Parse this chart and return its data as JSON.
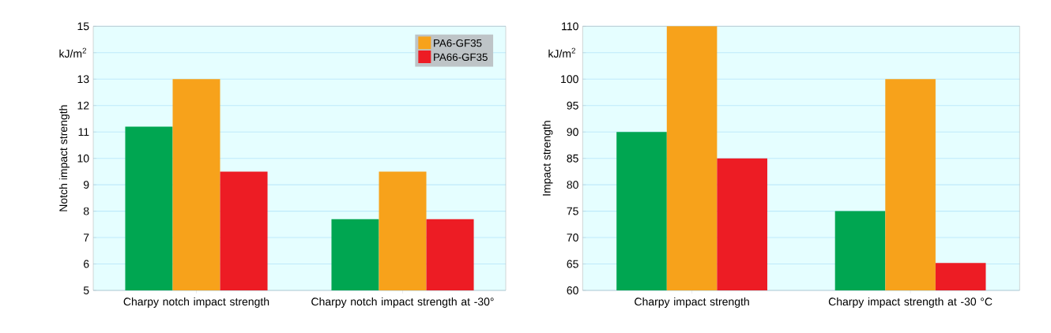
{
  "chart_data": [
    {
      "type": "bar",
      "ylabel": "Notch impact strength",
      "annotations": [
        "kJ/m$^{2}$"
      ],
      "categories": [
        "Charpy notch impact strength",
        "Charpy notch impact strength at -30°"
      ],
      "series": [
        {
          "color": "#00a651",
          "values": [
            11.2,
            7.7
          ]
        },
        {
          "name": "PA6-GF35",
          "color": "#f7a21b",
          "values": [
            13,
            9.5
          ]
        },
        {
          "name": "PA66-GF35",
          "color": "#ed1c24",
          "values": [
            9.5,
            7.7
          ]
        }
      ],
      "ylim": [
        5,
        15
      ],
      "yticks": [
        5,
        6,
        7,
        8,
        9,
        10,
        11,
        12,
        13,
        {
          "value": 14,
          "label": null
        },
        15
      ],
      "grid": "y",
      "legend": "top right"
    },
    {
      "type": "bar",
      "ylabel": "Impact strength",
      "annotations": [
        "kJ/m$^{2}$"
      ],
      "categories": [
        "Charpy impact strength",
        "Charpy impact strength at -30 °C"
      ],
      "series": [
        {
          "color": "#00a651",
          "values": [
            90,
            75
          ]
        },
        {
          "color": "#f7a21b",
          "values": [
            110,
            100
          ]
        },
        {
          "color": "#ed1c24",
          "values": [
            85,
            65.2
          ]
        }
      ],
      "ylim": [
        60,
        110
      ],
      "yticks": [
        60,
        65,
        70,
        75,
        80,
        85,
        90,
        95,
        100,
        {
          "value": 105,
          "label": null
        },
        110
      ],
      "grid": "y",
      "legend": false
    }
  ]
}
